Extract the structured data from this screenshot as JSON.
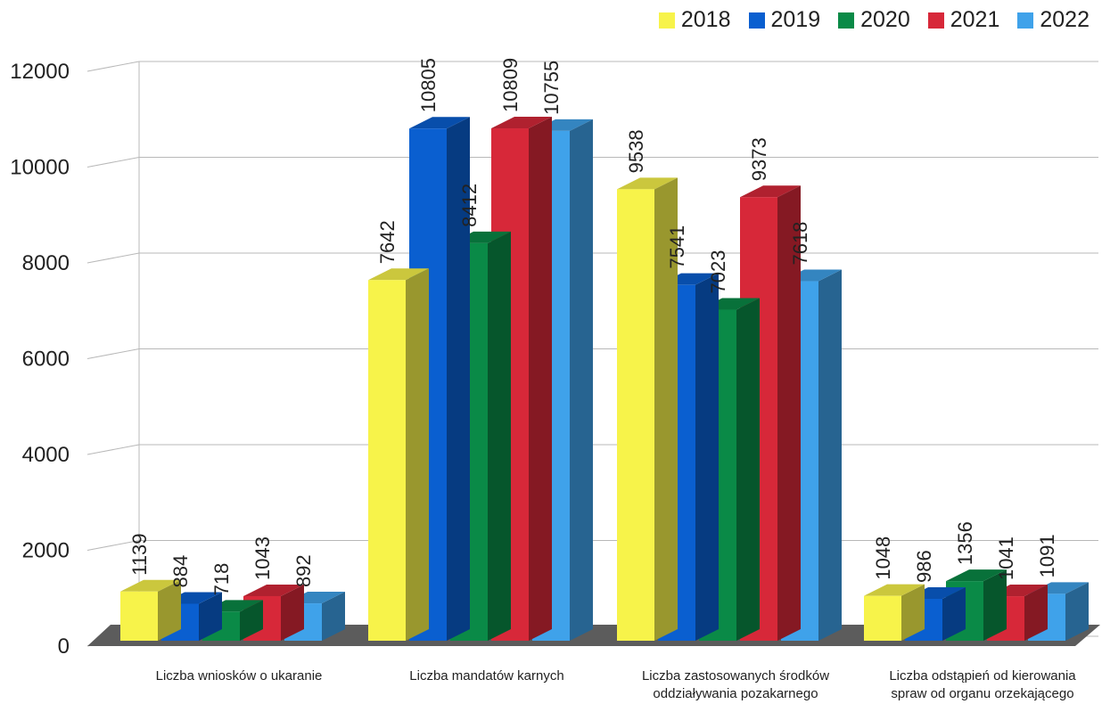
{
  "chart_data": {
    "type": "bar",
    "title": "",
    "xlabel": "",
    "ylabel": "",
    "ylim": [
      0,
      12000
    ],
    "yticks": [
      0,
      2000,
      4000,
      6000,
      8000,
      10000,
      12000
    ],
    "grid": true,
    "legend_position": "top-right",
    "categories": [
      [
        "Liczba wniosków o ukaranie"
      ],
      [
        "Liczba mandatów karnych"
      ],
      [
        "Liczba zastosowanych środków",
        "oddziaływania pozakarnego"
      ],
      [
        "Liczba odstąpień od kierowania",
        "spraw od organu orzekającego"
      ]
    ],
    "series": [
      {
        "name": "2018",
        "color": "#f7f34a",
        "values": [
          1139,
          7642,
          9538,
          1048
        ]
      },
      {
        "name": "2019",
        "color": "#0a5fd0",
        "values": [
          884,
          10805,
          7541,
          986
        ]
      },
      {
        "name": "2020",
        "color": "#0a8a47",
        "values": [
          718,
          8412,
          7023,
          1356
        ]
      },
      {
        "name": "2021",
        "color": "#d72839",
        "values": [
          1043,
          10809,
          9373,
          1041
        ]
      },
      {
        "name": "2022",
        "color": "#3fa2ea",
        "values": [
          892,
          10755,
          7618,
          1091
        ]
      }
    ]
  }
}
